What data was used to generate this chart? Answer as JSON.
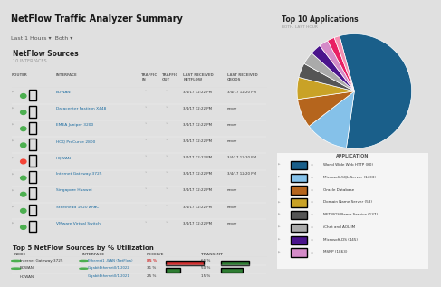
{
  "title": "NetFlow Traffic Analyzer Summary",
  "subtitle": "Last 1 Hours ▾  Both ▾",
  "bg_color": "#e0e0e0",
  "panel_bg": "#ffffff",
  "left_panel_title": "NetFlow Sources",
  "left_panel_sub": "10 INTERFACES",
  "row_names": [
    "BOWAN",
    "Datacenter Fastiron X448",
    "EMEA Juniper 3200",
    "HOQ ProCurve 2800",
    "HQWAN",
    "Internet Gateway 3725",
    "Singapore Huawei",
    "Steelhead 1020 APAC",
    "VMware Virtual Switch"
  ],
  "last_cbqos": [
    "3/4/17 12:20 PM",
    "never",
    "never",
    "never",
    "3/4/17 12:20 PM",
    "3/4/17 12:20 PM",
    "never",
    "never",
    "never"
  ],
  "row_status_colors": [
    "#4caf50",
    "#4caf50",
    "#4caf50",
    "#4caf50",
    "#f44336",
    "#4caf50",
    "#4caf50",
    "#4caf50",
    "#4caf50"
  ],
  "bottom_panel_title": "Top 5 NetFlow Sources by % Utilization",
  "util_rows": [
    {
      "node": "Internet Gateway 3725",
      "node_color": "#4caf50",
      "interface": "Ethernet1 -WAN (NetFlow)",
      "iface_color": "#4caf50",
      "recv_pct": 85,
      "recv_color": "#d32f2f",
      "trans_pct": 65,
      "trans_color": "#2e7d32"
    },
    {
      "node": "BOWAN",
      "node_color": "#4caf50",
      "interface": "GigabitEthernet0/1.2022",
      "iface_color": "#4caf50",
      "recv_pct": 31,
      "recv_color": "#2e7d32",
      "trans_pct": 50,
      "trans_color": "#2e7d32"
    },
    {
      "node": "HQWAN",
      "node_color": "#f44336",
      "interface": "GigabitEthernet0/1.2021",
      "iface_color": "#4caf50",
      "recv_pct": 25,
      "recv_color": "#2e7d32",
      "trans_pct": 15,
      "trans_color": "#2e7d32"
    }
  ],
  "right_panel_title": "Top 10 Applications",
  "right_panel_sub": "BOTH, LAST HOUR",
  "pie_values": [
    55,
    12,
    8,
    6,
    4,
    3.5,
    3,
    2.5,
    2,
    1.5
  ],
  "pie_colors": [
    "#1a5f8a",
    "#85c1e9",
    "#b5651d",
    "#c9a227",
    "#555555",
    "#aaaaaa",
    "#4a148c",
    "#d48bc8",
    "#e91e63",
    "#f48fb1"
  ],
  "legend_entries": [
    {
      "label": "World Wide Web HTTP (80)",
      "color": "#1a5f8a"
    },
    {
      "label": "Microsoft-SQL-Server (1433)",
      "color": "#85c1e9"
    },
    {
      "label": "Oracle Database",
      "color": "#b5651d"
    },
    {
      "label": "Domain Name Server (53)",
      "color": "#c9a227"
    },
    {
      "label": "NETBIOS Name Service (137)",
      "color": "#555555"
    },
    {
      "label": "iChat and AOL IM",
      "color": "#aaaaaa"
    },
    {
      "label": "Microsoft-DS (445)",
      "color": "#4a148c"
    },
    {
      "label": "MSNP (1863)",
      "color": "#d48bc8"
    }
  ]
}
